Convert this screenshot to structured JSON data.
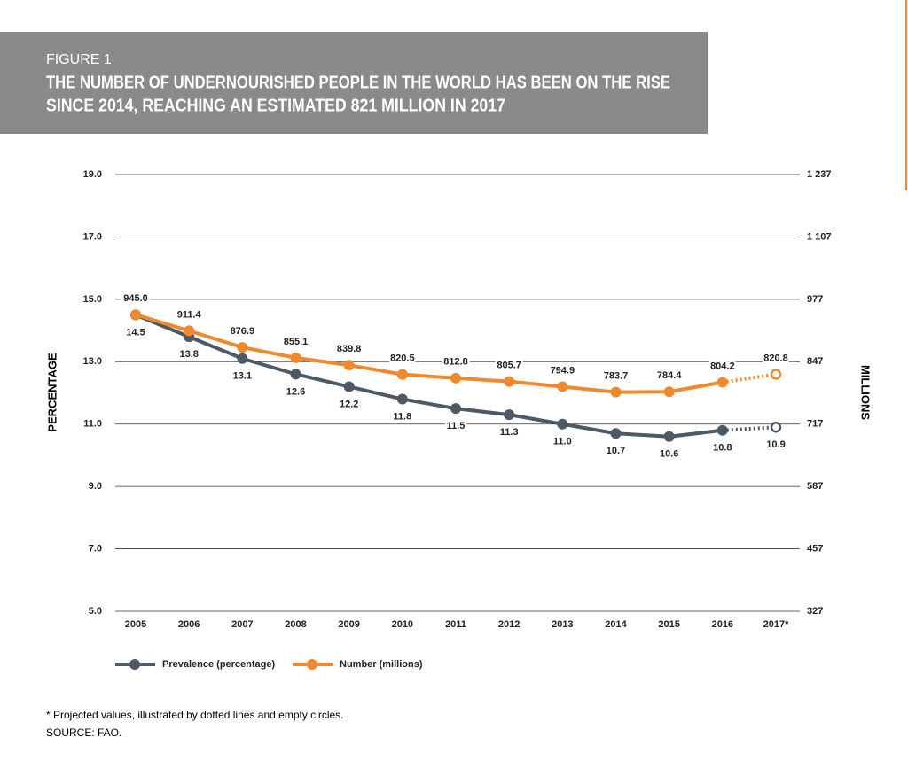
{
  "chart_data": {
    "type": "line",
    "figure_label": "FIGURE 1",
    "title_lines": [
      "THE NUMBER OF UNDERNOURISHED PEOPLE IN THE WORLD HAS BEEN ON THE RISE",
      "SINCE 2014, REACHING AN ESTIMATED 821 MILLION IN 2017"
    ],
    "ylabel": "PERCENTAGE",
    "y2label": "MILLIONS",
    "categories": [
      "2005",
      "2006",
      "2007",
      "2008",
      "2009",
      "2010",
      "2011",
      "2012",
      "2013",
      "2014",
      "2015",
      "2016",
      "2017*"
    ],
    "series": [
      {
        "name": "Prevalence (percentage)",
        "color": "#4d5a66",
        "values": [
          14.5,
          13.8,
          13.1,
          12.6,
          12.2,
          11.8,
          11.5,
          11.3,
          11.0,
          10.7,
          10.6,
          10.8,
          10.9
        ],
        "value_labels": [
          "14.5",
          "13.8",
          "13.1",
          "12.6",
          "12.2",
          "11.8",
          "11.5",
          "11.3",
          "11.0",
          "10.7",
          "10.6",
          "10.8",
          "10.9"
        ],
        "projected": [
          false,
          false,
          false,
          false,
          false,
          false,
          false,
          false,
          false,
          false,
          false,
          false,
          true
        ]
      },
      {
        "name": "Number (millions)",
        "color": "#f0892d",
        "axis": "y2",
        "values": [
          945.0,
          911.4,
          876.9,
          855.1,
          839.8,
          820.5,
          812.8,
          805.7,
          794.9,
          783.7,
          784.4,
          804.2,
          820.8
        ],
        "value_labels": [
          "945.0",
          "911.4",
          "876.9",
          "855.1",
          "839.8",
          "820.5",
          "812.8",
          "805.7",
          "794.9",
          "783.7",
          "784.4",
          "804.2",
          "820.8"
        ],
        "projected": [
          false,
          false,
          false,
          false,
          false,
          false,
          false,
          false,
          false,
          false,
          false,
          false,
          true
        ]
      }
    ],
    "ylim": [
      5.0,
      19.0
    ],
    "yticks": [
      {
        "value": 5,
        "label": "5.0"
      },
      {
        "value": 7,
        "label": "7.0"
      },
      {
        "value": 9,
        "label": "9.0"
      },
      {
        "value": 11,
        "label": "11.0"
      },
      {
        "value": 13,
        "label": "13.0"
      },
      {
        "value": 15,
        "label": "15.0"
      },
      {
        "value": 17,
        "label": "17.0"
      },
      {
        "value": 19,
        "label": "19.0"
      }
    ],
    "y2lim": [
      327,
      1237
    ],
    "y2ticks": [
      327,
      457,
      587,
      717,
      847,
      977,
      {
        "value": 1107,
        "label": "1 107"
      },
      {
        "value": 1237,
        "label": "1 237"
      }
    ],
    "grid": true,
    "footnote": "* Projected values, illustrated by dotted lines and empty circles.",
    "source": "SOURCE: FAO."
  }
}
